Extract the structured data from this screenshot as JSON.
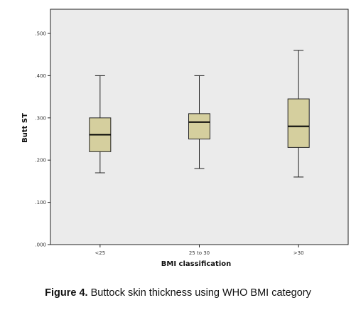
{
  "caption": {
    "label": "Figure 4.",
    "text": " Buttock skin thickness using WHO BMI category"
  },
  "chart_data": {
    "type": "box",
    "xlabel": "BMI classification",
    "ylabel": "Butt ST",
    "ylim": [
      0,
      0.55
    ],
    "yticks": [
      0,
      0.1,
      0.2,
      0.3,
      0.4,
      0.5
    ],
    "ytick_labels": [
      ".000",
      ".100",
      ".200",
      ".300",
      ".400",
      ".500"
    ],
    "grid": false,
    "categories": [
      "<25",
      "25 to 30",
      ">30"
    ],
    "boxes": [
      {
        "category": "<25",
        "min": 0.17,
        "q1": 0.22,
        "median": 0.26,
        "q3": 0.3,
        "max": 0.4
      },
      {
        "category": "25 to 30",
        "min": 0.18,
        "q1": 0.25,
        "median": 0.29,
        "q3": 0.31,
        "max": 0.4
      },
      {
        "category": ">30",
        "min": 0.16,
        "q1": 0.23,
        "median": 0.28,
        "q3": 0.345,
        "max": 0.46
      }
    ],
    "colors": {
      "plot_background": "#ebebeb",
      "box_fill": "#d5cf9e",
      "line": "#222222"
    }
  }
}
